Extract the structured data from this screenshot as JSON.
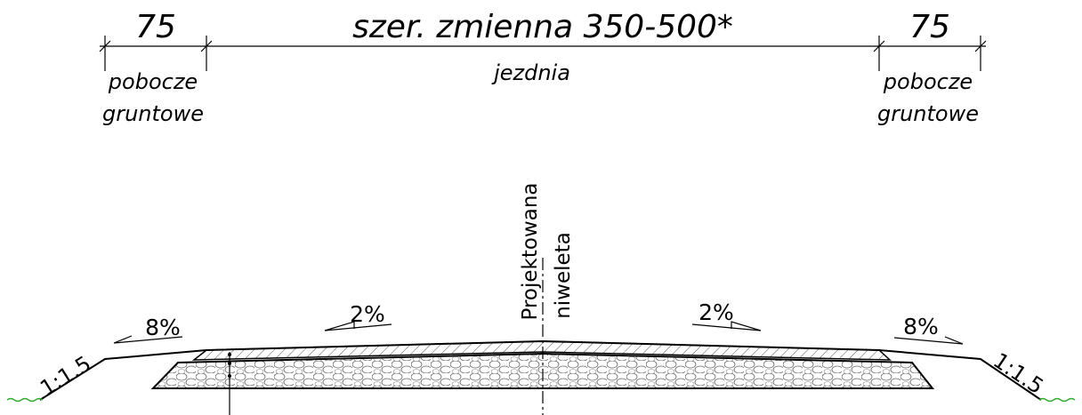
{
  "dimensions": [
    {
      "value": "75",
      "label": [
        "pobocze",
        "gruntowe"
      ]
    },
    {
      "value": "szer. zmienna 350-500*",
      "label": [
        "jezdnia"
      ]
    },
    {
      "value": "75",
      "label": [
        "pobocze",
        "gruntowe"
      ]
    }
  ],
  "axis_label": [
    "Projektowana",
    "niweleta"
  ],
  "slopes": [
    "8%",
    "2%",
    "2%",
    "8%"
  ],
  "embankments": [
    "1:1.5",
    "1:1.5"
  ]
}
